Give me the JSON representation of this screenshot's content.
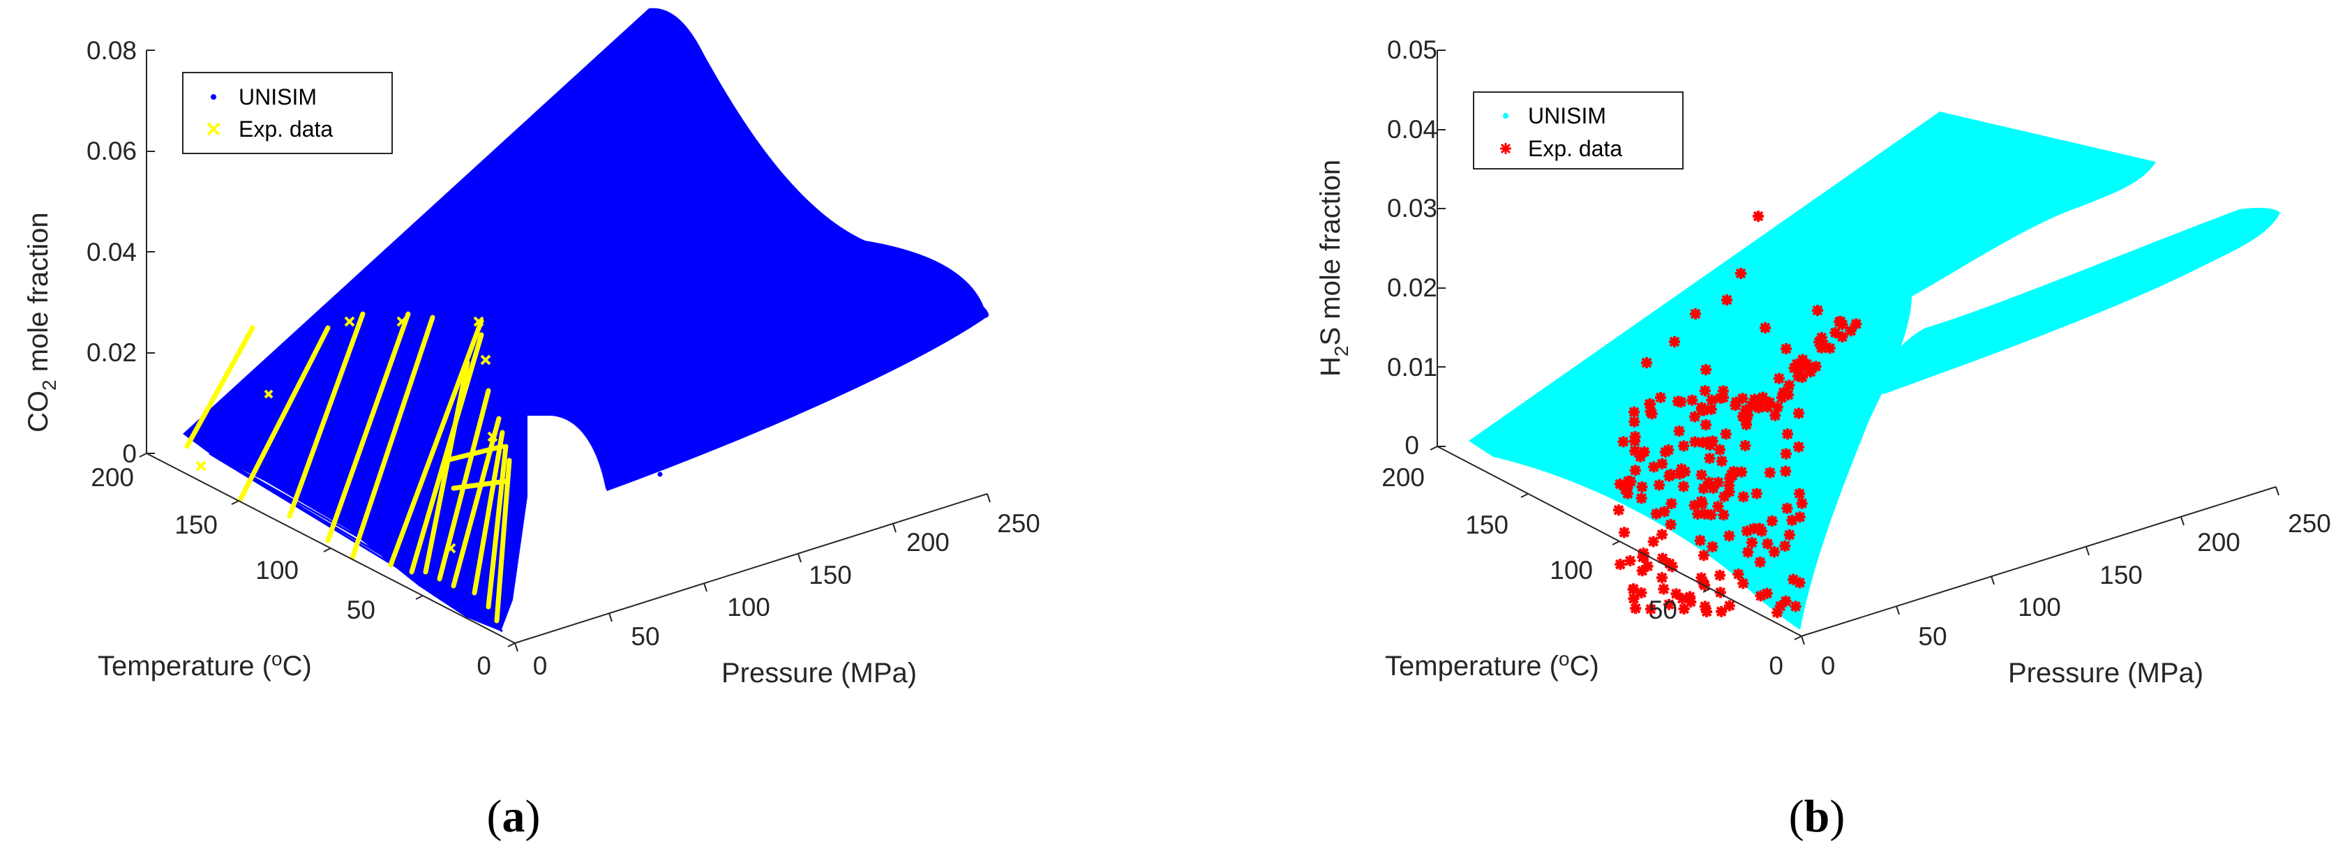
{
  "chart_data": [
    {
      "type": "scatter3d",
      "panel_label": "(a)",
      "caption_letter": "a",
      "zlabel_main": "CO",
      "zlabel_sub": "2",
      "zlabel_rest": " mole fraction",
      "xlabel": "Pressure (MPa)",
      "ylabel_pre": "Temperature (",
      "ylabel_sup": "o",
      "ylabel_post": "C)",
      "pressure_ticks": [
        "0",
        "50",
        "100",
        "150",
        "200",
        "250"
      ],
      "temperature_ticks": [
        "200",
        "150",
        "100",
        "50",
        "0"
      ],
      "mole_fraction_ticks": [
        "0",
        "0.02",
        "0.04",
        "0.06",
        "0.08"
      ],
      "zlim": [
        0,
        0.08
      ],
      "xlim": [
        0,
        250
      ],
      "ylim": [
        0,
        200
      ],
      "legend": [
        "UNISIM",
        "Exp. data"
      ],
      "legend_position": "top-left",
      "series": [
        {
          "name": "UNISIM",
          "marker": "dot",
          "color": "#0000ff",
          "description": "model surface"
        },
        {
          "name": "Exp. data",
          "marker": "x",
          "color": "#ffff00"
        }
      ]
    },
    {
      "type": "scatter3d",
      "panel_label": "(b)",
      "caption_letter": "b",
      "zlabel_main": "H",
      "zlabel_sub": "2",
      "zlabel_rest": "S mole fraction",
      "xlabel": "Pressure (MPa)",
      "ylabel_pre": "Temperature (",
      "ylabel_sup": "o",
      "ylabel_post": "C)",
      "pressure_ticks": [
        "0",
        "50",
        "100",
        "150",
        "200",
        "250"
      ],
      "temperature_ticks": [
        "200",
        "150",
        "100",
        "50",
        "0"
      ],
      "mole_fraction_ticks": [
        "0",
        "0.01",
        "0.02",
        "0.03",
        "0.04",
        "0.05"
      ],
      "zlim": [
        0,
        0.05
      ],
      "xlim": [
        0,
        250
      ],
      "ylim": [
        0,
        200
      ],
      "legend": [
        "UNISIM",
        "Exp. data"
      ],
      "legend_position": "top-left",
      "series": [
        {
          "name": "UNISIM",
          "marker": "dot",
          "color": "#00ffff",
          "description": "model surface"
        },
        {
          "name": "Exp. data",
          "marker": "asterisk",
          "color": "#ff0000"
        }
      ]
    }
  ]
}
